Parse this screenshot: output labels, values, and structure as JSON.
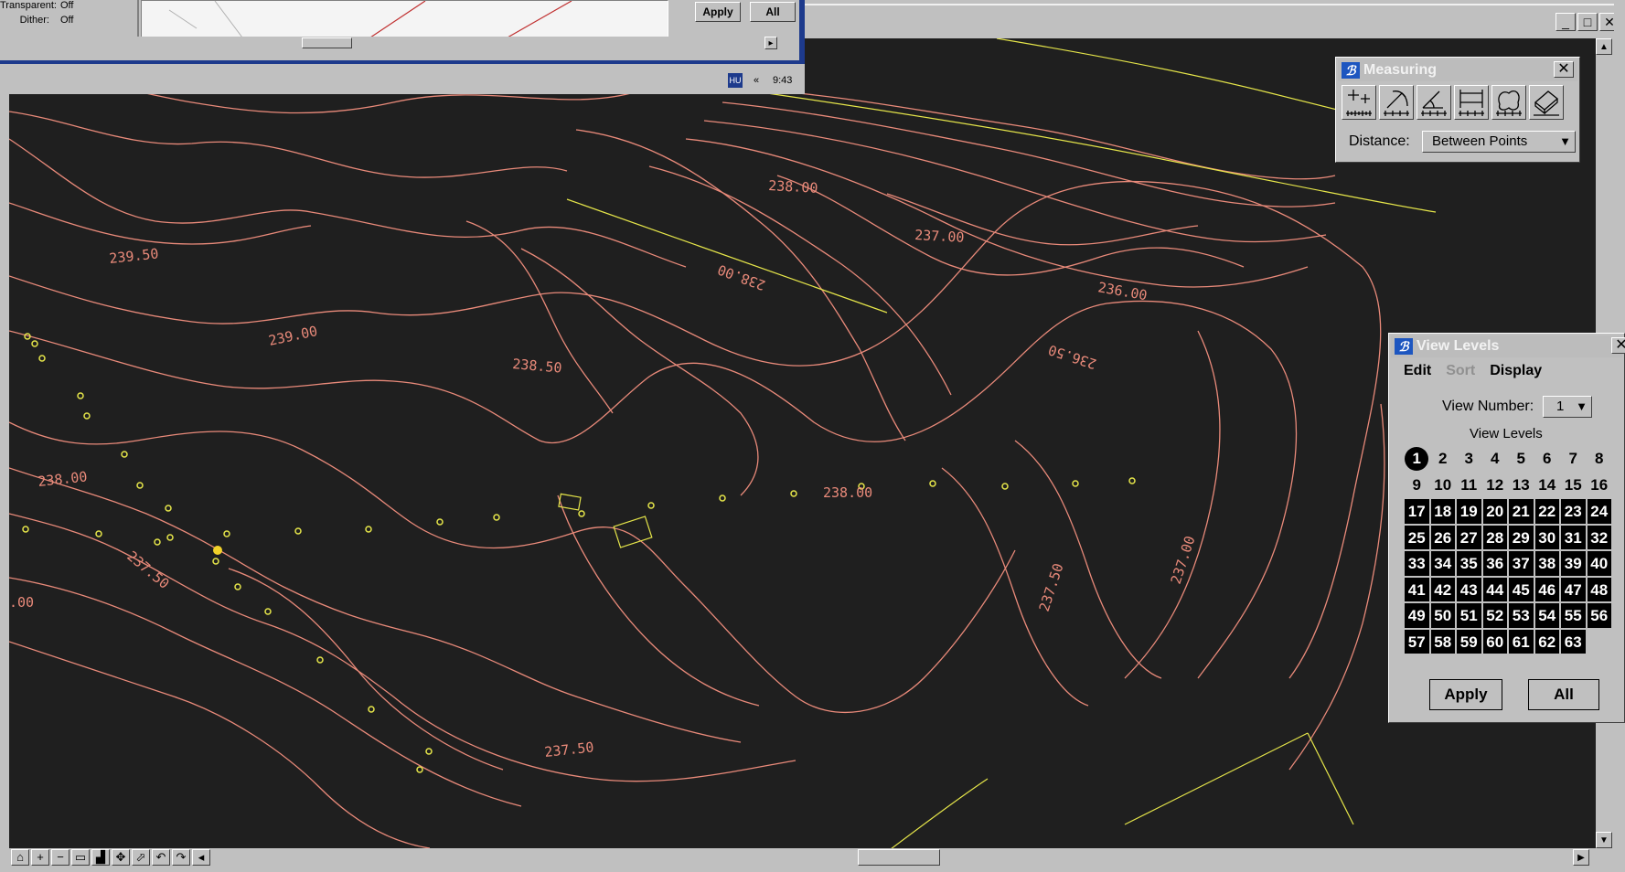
{
  "settings_window": {
    "rows": [
      {
        "label": "Transparent:",
        "value": "Off"
      },
      {
        "label": "Dither:",
        "value": "Off"
      }
    ],
    "apply_label": "Apply",
    "all_label": "All"
  },
  "status_bar": {
    "hu_badge": "HU",
    "chevron": "«",
    "clock": "9:43"
  },
  "main_window": {
    "controls": [
      "_",
      "□",
      "✕"
    ]
  },
  "measuring": {
    "title": "Measuring",
    "close": "✕",
    "tools": [
      "measure-points-icon",
      "measure-angle-icon",
      "measure-minimum-icon",
      "measure-along-icon",
      "measure-area-icon",
      "measure-volume-icon"
    ],
    "distance_label": "Distance:",
    "distance_value": "Between Points"
  },
  "view_levels": {
    "title": "View Levels",
    "close": "✕",
    "menu": [
      {
        "label": "Edit",
        "enabled": true
      },
      {
        "label": "Sort",
        "enabled": false
      },
      {
        "label": "Display",
        "enabled": true
      }
    ],
    "view_number_label": "View Number:",
    "view_number_value": "1",
    "caption": "View Levels",
    "levels": [
      "1",
      "2",
      "3",
      "4",
      "5",
      "6",
      "7",
      "8",
      "9",
      "10",
      "11",
      "12",
      "13",
      "14",
      "15",
      "16",
      "17",
      "18",
      "19",
      "20",
      "21",
      "22",
      "23",
      "24",
      "25",
      "26",
      "27",
      "28",
      "29",
      "30",
      "31",
      "32",
      "33",
      "34",
      "35",
      "36",
      "37",
      "38",
      "39",
      "40",
      "41",
      "42",
      "43",
      "44",
      "45",
      "46",
      "47",
      "48",
      "49",
      "50",
      "51",
      "52",
      "53",
      "54",
      "55",
      "56",
      "57",
      "58",
      "59",
      "60",
      "61",
      "62",
      "63"
    ],
    "levels_on_from": 17,
    "active_level": "1",
    "apply_label": "Apply",
    "all_label": "All"
  },
  "view_toolbar": {
    "tools": [
      {
        "icon": "update-view-icon",
        "glyph": "⌂"
      },
      {
        "icon": "zoom-in-icon",
        "glyph": "+"
      },
      {
        "icon": "zoom-out-icon",
        "glyph": "−"
      },
      {
        "icon": "window-area-icon",
        "glyph": "▭"
      },
      {
        "icon": "fit-view-icon",
        "glyph": "▟"
      },
      {
        "icon": "rotate-view-icon",
        "glyph": "✥"
      },
      {
        "icon": "pan-view-icon",
        "glyph": "⬀"
      },
      {
        "icon": "view-previous-icon",
        "glyph": "↶"
      },
      {
        "icon": "view-next-icon",
        "glyph": "↷"
      },
      {
        "icon": "copy-view-icon",
        "glyph": "◂"
      }
    ]
  },
  "drawing": {
    "contour_color": "#e98a7a",
    "feature_color": "#e6e64a",
    "background": "#1f1f1f",
    "contour_labels": [
      "239.50",
      "239.00",
      "238.50",
      "238.00",
      "238.00",
      "238.00",
      "237.50",
      "237.50",
      "237.50",
      "237.00",
      "237.00",
      "236.00",
      "236.50",
      "238.00",
      ".00"
    ]
  }
}
